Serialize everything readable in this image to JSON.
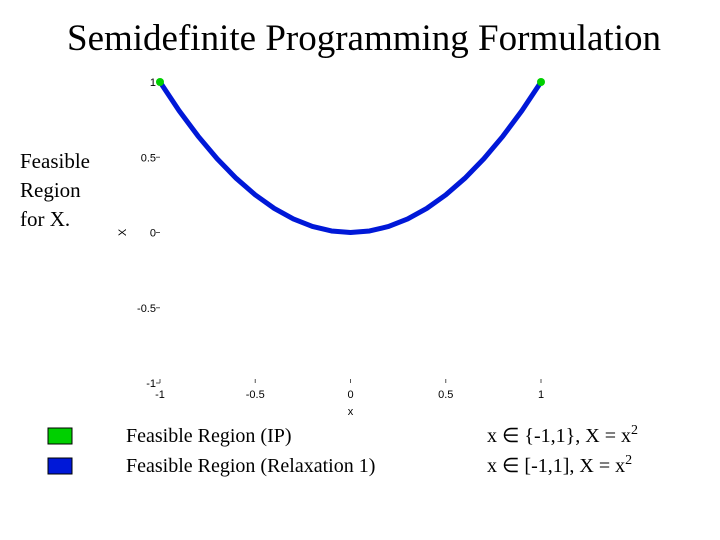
{
  "chart_data": {
    "type": "line",
    "title": "Semidefinite Programming Formulation",
    "side_label": [
      "Feasible",
      "Region",
      "for X."
    ],
    "xlabel": "x",
    "ylabel": "X",
    "xlim": [
      -1,
      1
    ],
    "xticks": [
      -1,
      -0.5,
      0,
      0.5,
      1
    ],
    "ylim": [
      -1,
      1
    ],
    "yticks": [
      -1,
      -0.5,
      0,
      0.5,
      1
    ],
    "series": [
      {
        "name": "Feasible Region (IP)",
        "color": "#00d000",
        "mode": "markers",
        "x": [
          -1,
          1
        ],
        "values": [
          1,
          1
        ]
      },
      {
        "name": "Feasible Region (Relaxation 1)",
        "color": "#0018d8",
        "mode": "line",
        "x": [
          -1,
          -0.9,
          -0.8,
          -0.7,
          -0.6,
          -0.5,
          -0.4,
          -0.3,
          -0.2,
          -0.1,
          0,
          0.1,
          0.2,
          0.3,
          0.4,
          0.5,
          0.6,
          0.7,
          0.8,
          0.9,
          1
        ],
        "values": [
          1,
          0.81,
          0.64,
          0.49,
          0.36,
          0.25,
          0.16,
          0.09,
          0.04,
          0.01,
          0,
          0.01,
          0.04,
          0.09,
          0.16,
          0.25,
          0.36,
          0.49,
          0.64,
          0.81,
          1
        ]
      }
    ],
    "annotations": [
      {
        "text": "x ∈ {-1,1}, X = x",
        "sup": "2"
      },
      {
        "text": "x ∈ [-1,1], X = x",
        "sup": "2"
      }
    ]
  }
}
